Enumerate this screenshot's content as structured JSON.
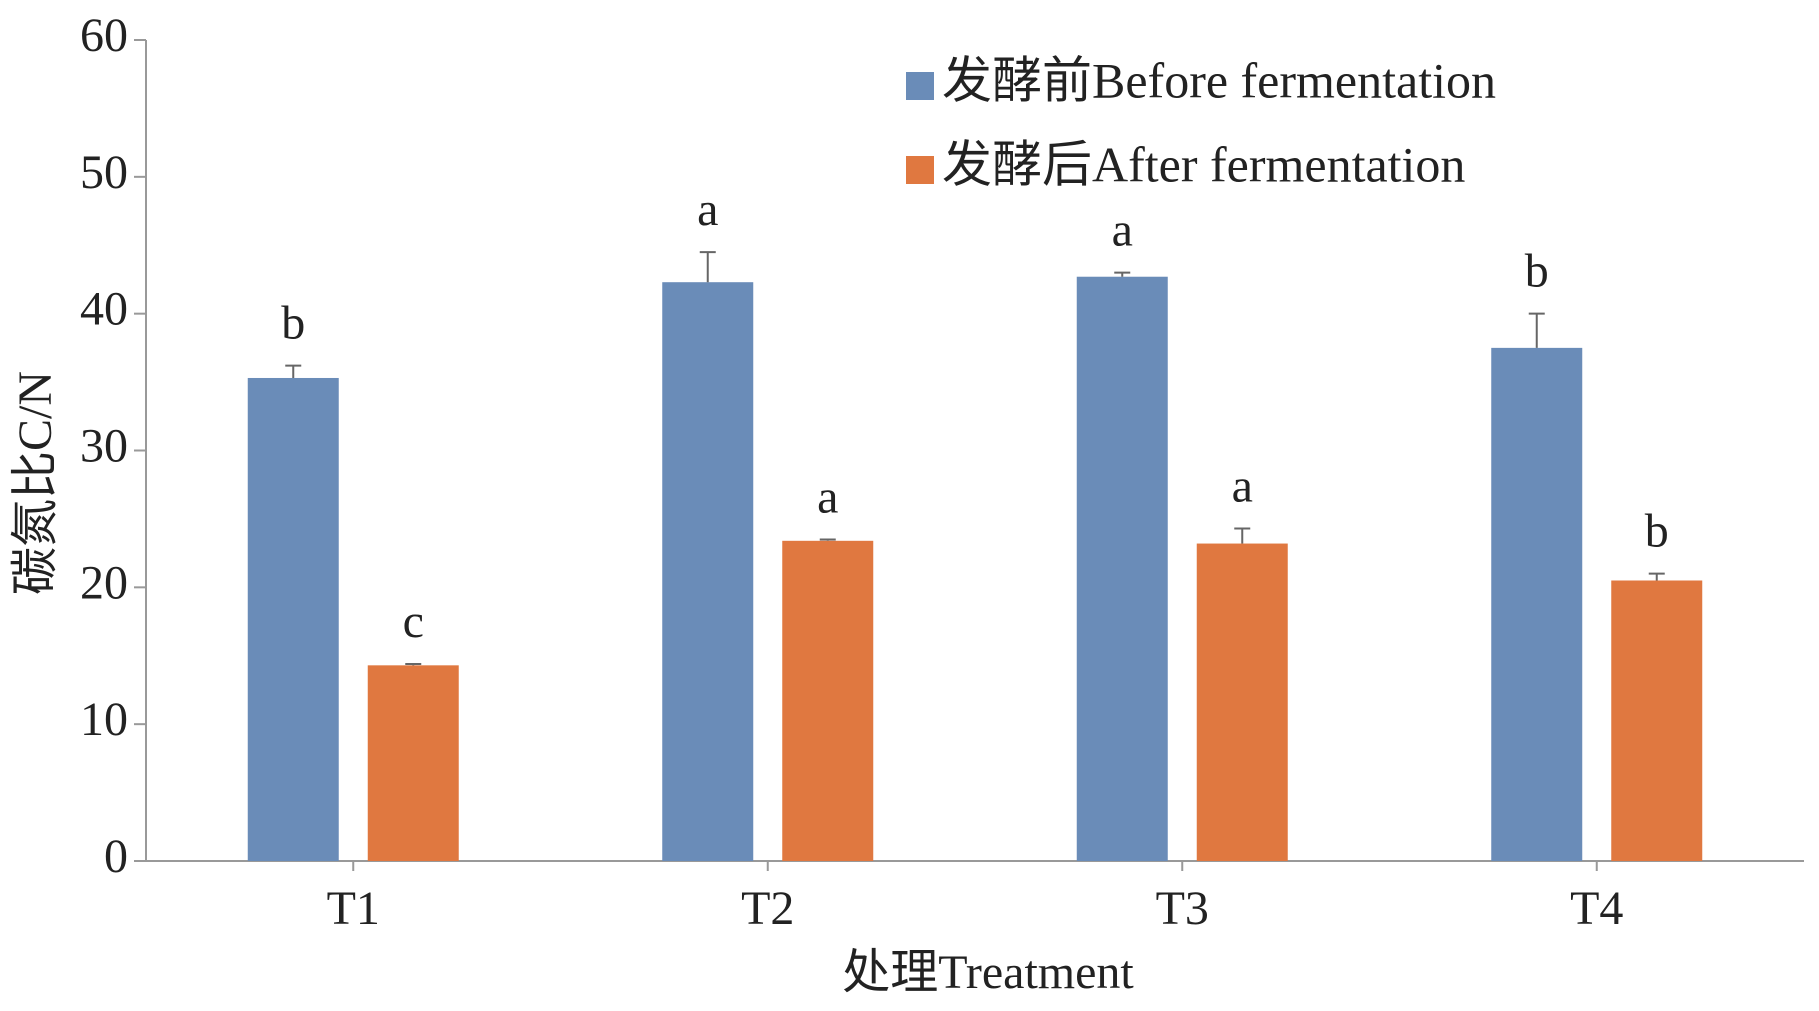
{
  "chart_data": {
    "type": "bar",
    "x_label": "处理Treatment",
    "y_label": "碳氮比C/N",
    "categories": [
      "T1",
      "T2",
      "T3",
      "T4"
    ],
    "series": [
      {
        "name": "发酵前Before fermentation",
        "color": "#6a8cb8",
        "values": [
          35.3,
          42.3,
          42.7,
          37.5
        ],
        "errors": [
          0.9,
          2.2,
          0.3,
          2.5
        ],
        "labels": [
          "b",
          "a",
          "a",
          "b"
        ]
      },
      {
        "name": "发酵后After fermentation",
        "color": "#e07840",
        "values": [
          14.3,
          23.4,
          23.2,
          20.5
        ],
        "errors": [
          0.1,
          0.1,
          1.1,
          0.5
        ],
        "labels": [
          "c",
          "a",
          "a",
          "b"
        ]
      }
    ],
    "ylim": [
      0,
      60
    ],
    "yticks": [
      0,
      10,
      20,
      30,
      40,
      50,
      60
    ]
  }
}
